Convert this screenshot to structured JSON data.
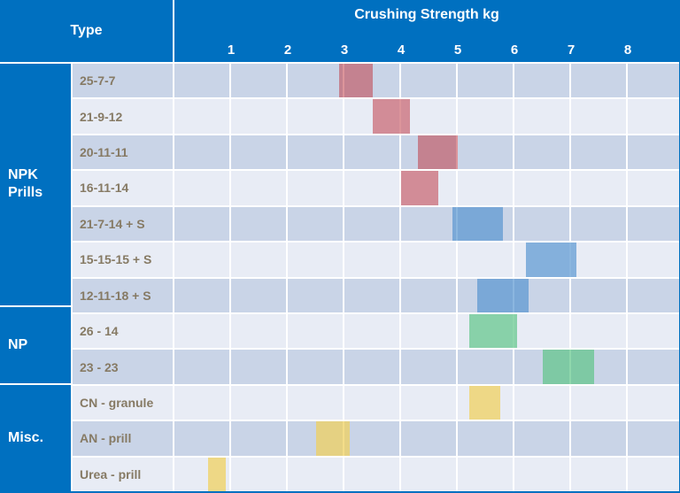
{
  "header": {
    "type_label": "Type",
    "axis_title": "Crushing Strength kg"
  },
  "colors": {
    "header_blue": "#0070c0",
    "row_dark": "#c9d4e7",
    "row_light": "#e8ecf5",
    "grid_line": "#ffffff",
    "row_label_text": "#867a64",
    "red": "rgba(192,62,72,0.55)",
    "blue": "rgba(84,148,208,0.68)",
    "green": "rgba(90,196,132,0.68)",
    "yellow": "rgba(240,208,92,0.72)"
  },
  "chart_data": {
    "type": "bar",
    "orientation": "horizontal-range",
    "title": "Crushing Strength kg",
    "xlabel": "Crushing Strength kg",
    "ylabel": "Type",
    "xlim": [
      0,
      8.9
    ],
    "x_ticks": [
      1,
      2,
      3,
      4,
      5,
      6,
      7,
      8
    ],
    "grid": true,
    "legend": false,
    "groups": [
      {
        "name": "NPK Prills",
        "rows": [
          {
            "label": "25-7-7",
            "range": [
              2.9,
              3.5
            ],
            "color_key": "red"
          },
          {
            "label": "21-9-12",
            "range": [
              3.5,
              4.15
            ],
            "color_key": "red"
          },
          {
            "label": "20-11-11",
            "range": [
              4.3,
              5.0
            ],
            "color_key": "red"
          },
          {
            "label": "16-11-14",
            "range": [
              4.0,
              4.65
            ],
            "color_key": "red"
          },
          {
            "label": "21-7-14 + S",
            "range": [
              4.9,
              5.8
            ],
            "color_key": "blue"
          },
          {
            "label": "15-15-15 + S",
            "range": [
              6.2,
              7.1
            ],
            "color_key": "blue"
          },
          {
            "label": "12-11-18 + S",
            "range": [
              5.35,
              6.25
            ],
            "color_key": "blue"
          }
        ]
      },
      {
        "name": "NP",
        "rows": [
          {
            "label": "26 - 14",
            "range": [
              5.2,
              6.05
            ],
            "color_key": "green"
          },
          {
            "label": "23 - 23",
            "range": [
              6.5,
              7.4
            ],
            "color_key": "green"
          }
        ]
      },
      {
        "name": "Misc.",
        "rows": [
          {
            "label": "CN - granule",
            "range": [
              5.2,
              5.75
            ],
            "color_key": "yellow"
          },
          {
            "label": "AN - prill",
            "range": [
              2.5,
              3.1
            ],
            "color_key": "yellow"
          },
          {
            "label": "Urea - prill",
            "range": [
              0.6,
              0.9
            ],
            "color_key": "yellow"
          }
        ]
      }
    ]
  }
}
